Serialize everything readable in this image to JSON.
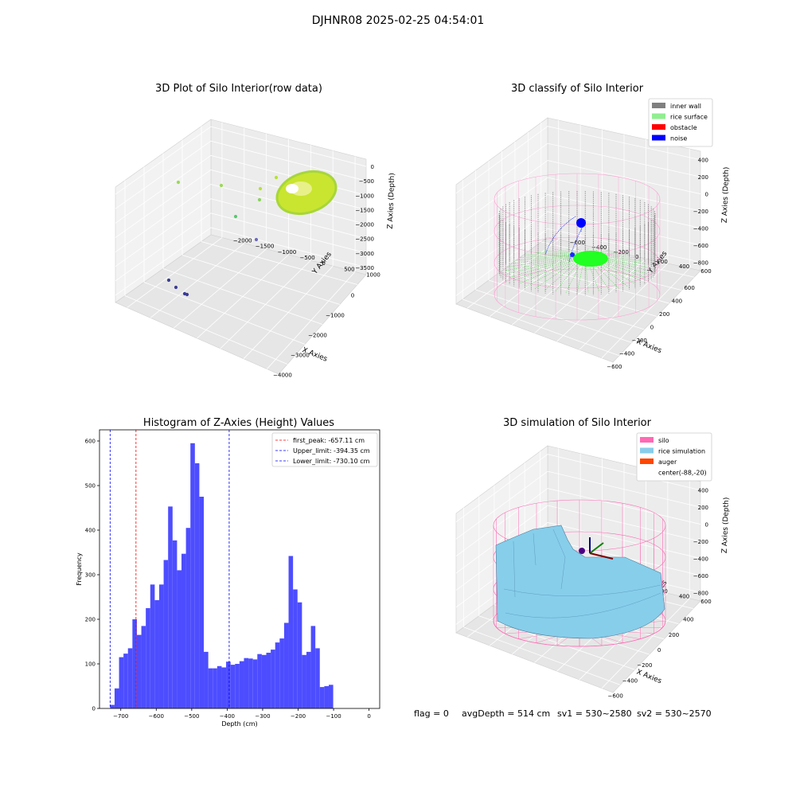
{
  "suptitle": "DJHNR08 2025-02-25 04:54:01",
  "panels": {
    "p1": {
      "title": "3D Plot of Silo Interior(row data)",
      "xlabel": "X Axies",
      "ylabel": "Y Axies",
      "zlabel": "Z Axies (Depth)",
      "xticks": [
        "−4000",
        "−3000",
        "−2000",
        "−1000",
        "0"
      ],
      "yticks": [
        "1000",
        "500",
        "0",
        "−500",
        "−1000",
        "−1500",
        "−2000"
      ],
      "zticks": [
        "0",
        "−500",
        "−1000",
        "−1500",
        "−2000",
        "−2500",
        "−3000",
        "−3500"
      ]
    },
    "p2": {
      "title": "3D classify of Silo Interior",
      "xlabel": "X Axies",
      "ylabel": "Y Axies",
      "zlabel": "Z Axies (Depth)",
      "xticks": [
        "−600",
        "−400",
        "−200",
        "0",
        "200",
        "400",
        "600"
      ],
      "yticks": [
        "600",
        "400",
        "200",
        "0",
        "−200",
        "−400",
        "−600"
      ],
      "zticks": [
        "400",
        "200",
        "0",
        "−200",
        "−400",
        "−600",
        "−800"
      ],
      "legend": [
        {
          "label": "inner wall",
          "color": "#808080"
        },
        {
          "label": "rice surface",
          "color": "#90ee90"
        },
        {
          "label": "obstacle",
          "color": "#ff0000"
        },
        {
          "label": "noise",
          "color": "#0000ff"
        }
      ]
    },
    "p4": {
      "title": "3D simulation of Silo Interior",
      "xlabel": "X Axies",
      "ylabel": "Y Axies",
      "zlabel": "Z Axies (Depth)",
      "xticks": [
        "−600",
        "−400",
        "−200",
        "0",
        "200",
        "400"
      ],
      "yticks": [
        "600",
        "400",
        "200",
        "0",
        "−200",
        "−400",
        "−600"
      ],
      "zticks": [
        "400",
        "200",
        "0",
        "−200",
        "−400",
        "−600",
        "−800"
      ],
      "legend": [
        {
          "label": "silo",
          "color": "#ff69b4"
        },
        {
          "label": "rice simulation",
          "color": "#87ceeb"
        },
        {
          "label": "auger",
          "color": "#ff4500"
        },
        {
          "label": "center(-88,-20)",
          "color": ""
        }
      ]
    }
  },
  "footer": {
    "flag": "flag = 0",
    "avg": "avgDepth = 514 cm",
    "sv1": "sv1 = 530~2580",
    "sv2": "sv2 = 530~2570"
  },
  "chart_data": [
    {
      "type": "bar",
      "title": "Histogram of Z-Axies (Height) Values",
      "xlabel": "Depth (cm)",
      "ylabel": "Frequency",
      "xlim": [
        -760,
        30
      ],
      "ylim": [
        0,
        625
      ],
      "xticks": [
        -700,
        -600,
        -500,
        -400,
        -300,
        -200,
        -100,
        0
      ],
      "yticks": [
        0,
        100,
        200,
        300,
        400,
        500,
        600
      ],
      "bin_start": -730.1,
      "bin_width": 12.58,
      "values": [
        8,
        45,
        115,
        123,
        135,
        200,
        165,
        185,
        225,
        278,
        243,
        278,
        333,
        453,
        377,
        310,
        347,
        405,
        595,
        550,
        475,
        127,
        90,
        90,
        95,
        92,
        105,
        98,
        100,
        106,
        113,
        112,
        110,
        122,
        120,
        125,
        132,
        148,
        157,
        192,
        342,
        267,
        238,
        120,
        127,
        185,
        135,
        48,
        50,
        53
      ],
      "bar_color": "#4d4dff",
      "vlines": [
        {
          "label": "first_peak: -657.11 cm",
          "x": -657.11,
          "color": "#ff0000"
        },
        {
          "label": "Upper_limit: -394.35 cm",
          "x": -394.35,
          "color": "#0000ff"
        },
        {
          "label": "Lower_limit: -730.10 cm",
          "x": -730.1,
          "color": "#0000ff"
        }
      ],
      "legend_position": "top-right"
    }
  ]
}
